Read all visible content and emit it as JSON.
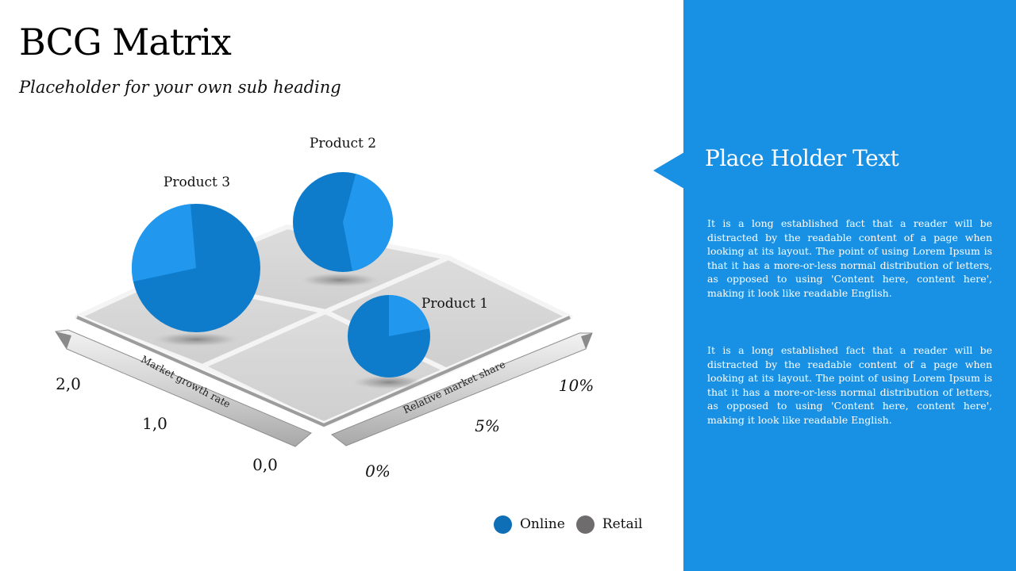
{
  "header": {
    "title": "BCG Matrix",
    "subtitle": "Placeholder for your own sub heading"
  },
  "chart_data": {
    "type": "scatter",
    "style": "isometric bubble pie chart on 2x2 grid",
    "x_axis": {
      "label": "Relative market share",
      "ticks": [
        "0%",
        "5%",
        "10%"
      ]
    },
    "y_axis": {
      "label": "Market growth rate",
      "ticks": [
        "0,0",
        "1,0",
        "2,0"
      ]
    },
    "series_colors": {
      "Online": "#0f7ccb",
      "Retail": "#2198ee"
    },
    "products": [
      {
        "name": "Product 3",
        "online_share": 0.73,
        "retail_share": 0.27
      },
      {
        "name": "Product 2",
        "online_share": 0.55,
        "retail_share": 0.45
      },
      {
        "name": "Product 1",
        "online_share": 0.78,
        "retail_share": 0.22
      }
    ]
  },
  "legend": {
    "items": [
      {
        "label": "Online",
        "color": "#0f6fb6"
      },
      {
        "label": "Retail",
        "color": "#6e6c6c"
      }
    ]
  },
  "panel": {
    "title": "Place Holder Text",
    "paragraphs": [
      "It is a long established fact that a reader will be distracted by the readable content of a page when looking at its layout. The point of using Lorem Ipsum is that it has a more-or-less normal distribution of letters, as opposed to using 'Content here, content here', making it look like readable English.",
      "It is a long established fact that a reader will be distracted by the readable content of a page when looking at its layout. The point of using Lorem Ipsum is that it has a more-or-less normal distribution of letters, as opposed to using 'Content here, content here', making it look like readable English."
    ],
    "color": "#1890e4"
  }
}
